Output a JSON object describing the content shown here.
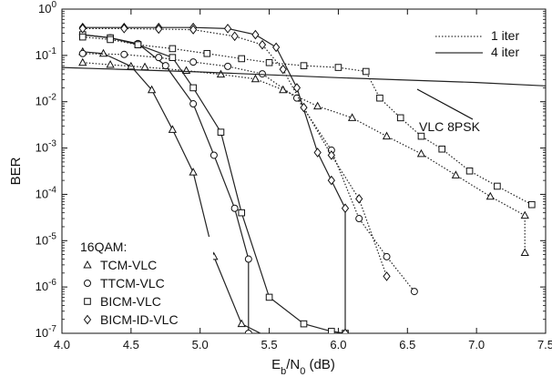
{
  "chart_data": {
    "type": "line",
    "title": "",
    "xlabel_main": "E",
    "xlabel_sub1": "b",
    "xlabel_mid": "/N",
    "xlabel_sub2": "0",
    "xlabel_tail": " (dB)",
    "ylabel": "BER",
    "xlim": [
      4.0,
      7.5
    ],
    "ylim_log10": [
      -7,
      0
    ],
    "y_scale": "log",
    "x_ticks": [
      "4.0",
      "4.5",
      "5.0",
      "5.5",
      "6.0",
      "6.5",
      "7.0",
      "7.5"
    ],
    "y_ticks": [
      {
        "base": "10",
        "exp": "0"
      },
      {
        "base": "10",
        "exp": "-1"
      },
      {
        "base": "10",
        "exp": "-2"
      },
      {
        "base": "10",
        "exp": "-3"
      },
      {
        "base": "10",
        "exp": "-4"
      },
      {
        "base": "10",
        "exp": "-5"
      },
      {
        "base": "10",
        "exp": "-6"
      },
      {
        "base": "10",
        "exp": "-7"
      }
    ],
    "legend_line": [
      {
        "label": "1 iter",
        "style": "dotted"
      },
      {
        "label": "4 iter",
        "style": "solid"
      }
    ],
    "legend_marker_title": "16QAM:",
    "legend_marker": [
      {
        "label": "TCM-VLC",
        "marker": "triangle"
      },
      {
        "label": "TTCM-VLC",
        "marker": "circle"
      },
      {
        "label": "BICM-VLC",
        "marker": "square"
      },
      {
        "label": "BICM-ID-VLC",
        "marker": "diamond"
      }
    ],
    "annotation": "VLC 8PSK",
    "series": [
      {
        "marker": "triangle",
        "style": "solid",
        "points": [
          [
            4.15,
            0.12
          ],
          [
            4.3,
            0.11
          ],
          [
            4.5,
            0.058
          ],
          [
            4.65,
            0.018
          ],
          [
            4.8,
            0.0025
          ],
          [
            4.95,
            0.0003
          ],
          [
            5.1,
            4.5e-06
          ],
          [
            5.3,
            1.6e-07
          ],
          [
            5.5,
            8e-08
          ]
        ]
      },
      {
        "marker": "triangle",
        "style": "dotted",
        "points": [
          [
            4.15,
            0.07
          ],
          [
            4.35,
            0.063
          ],
          [
            4.6,
            0.056
          ],
          [
            4.9,
            0.047
          ],
          [
            5.15,
            0.039
          ],
          [
            5.4,
            0.031
          ],
          [
            5.6,
            0.018
          ],
          [
            5.85,
            0.008
          ],
          [
            6.1,
            0.0045
          ],
          [
            6.35,
            0.0018
          ],
          [
            6.6,
            0.00075
          ],
          [
            6.85,
            0.00026
          ],
          [
            7.1,
            9e-05
          ],
          [
            7.35,
            3.5e-05
          ],
          [
            7.35,
            5.5e-06
          ]
        ]
      },
      {
        "marker": "circle",
        "style": "solid",
        "points": [
          [
            4.15,
            0.28
          ],
          [
            4.35,
            0.24
          ],
          [
            4.55,
            0.18
          ],
          [
            4.75,
            0.06
          ],
          [
            4.95,
            0.009
          ],
          [
            5.1,
            0.0007
          ],
          [
            5.25,
            5e-05
          ],
          [
            5.35,
            4e-06
          ],
          [
            5.35,
            1e-07
          ]
        ]
      },
      {
        "marker": "circle",
        "style": "dotted",
        "points": [
          [
            4.15,
            0.11
          ],
          [
            4.45,
            0.105
          ],
          [
            4.7,
            0.09
          ],
          [
            4.95,
            0.072
          ],
          [
            5.2,
            0.058
          ],
          [
            5.45,
            0.04
          ],
          [
            5.7,
            0.012
          ],
          [
            5.95,
            0.0009
          ],
          [
            6.15,
            3e-05
          ],
          [
            6.35,
            4.5e-06
          ],
          [
            6.55,
            8e-07
          ]
        ]
      },
      {
        "marker": "square",
        "style": "solid",
        "points": [
          [
            4.15,
            0.28
          ],
          [
            4.35,
            0.24
          ],
          [
            4.55,
            0.17
          ],
          [
            4.8,
            0.09
          ],
          [
            4.95,
            0.02
          ],
          [
            5.15,
            0.0022
          ],
          [
            5.3,
            4e-05
          ],
          [
            5.5,
            6e-07
          ],
          [
            5.75,
            1.6e-07
          ],
          [
            5.95,
            1.1e-07
          ],
          [
            6.05,
            1e-07
          ]
        ]
      },
      {
        "marker": "square",
        "style": "dotted",
        "points": [
          [
            4.15,
            0.25
          ],
          [
            4.35,
            0.22
          ],
          [
            4.55,
            0.17
          ],
          [
            4.8,
            0.14
          ],
          [
            5.05,
            0.11
          ],
          [
            5.3,
            0.085
          ],
          [
            5.5,
            0.07
          ],
          [
            5.75,
            0.06
          ],
          [
            6.0,
            0.055
          ],
          [
            6.2,
            0.045
          ],
          [
            6.3,
            0.012
          ],
          [
            6.45,
            0.0045
          ],
          [
            6.6,
            0.0018
          ],
          [
            6.75,
            0.00095
          ],
          [
            6.95,
            0.00032
          ],
          [
            7.15,
            0.00015
          ],
          [
            7.4,
            6e-05
          ]
        ]
      },
      {
        "marker": "diamond",
        "style": "solid",
        "points": [
          [
            4.15,
            0.4
          ],
          [
            4.45,
            0.4
          ],
          [
            4.7,
            0.4
          ],
          [
            4.95,
            0.4
          ],
          [
            5.2,
            0.38
          ],
          [
            5.4,
            0.28
          ],
          [
            5.55,
            0.15
          ],
          [
            5.7,
            0.02
          ],
          [
            5.85,
            0.0008
          ],
          [
            5.95,
            0.0002
          ],
          [
            6.05,
            5e-05
          ],
          [
            6.05,
            1e-07
          ]
        ]
      },
      {
        "marker": "diamond",
        "style": "dotted",
        "points": [
          [
            4.15,
            0.38
          ],
          [
            4.45,
            0.38
          ],
          [
            4.7,
            0.37
          ],
          [
            4.95,
            0.36
          ],
          [
            5.25,
            0.26
          ],
          [
            5.45,
            0.17
          ],
          [
            5.6,
            0.05
          ],
          [
            5.75,
            0.0075
          ],
          [
            5.95,
            0.0007
          ],
          [
            6.15,
            8e-05
          ],
          [
            6.35,
            1.7e-06
          ]
        ]
      },
      {
        "marker": "none",
        "style": "solid",
        "points": [
          [
            4.0,
            0.055
          ],
          [
            5.0,
            0.044
          ],
          [
            6.0,
            0.033
          ],
          [
            7.0,
            0.026
          ],
          [
            7.5,
            0.022
          ]
        ]
      }
    ]
  }
}
